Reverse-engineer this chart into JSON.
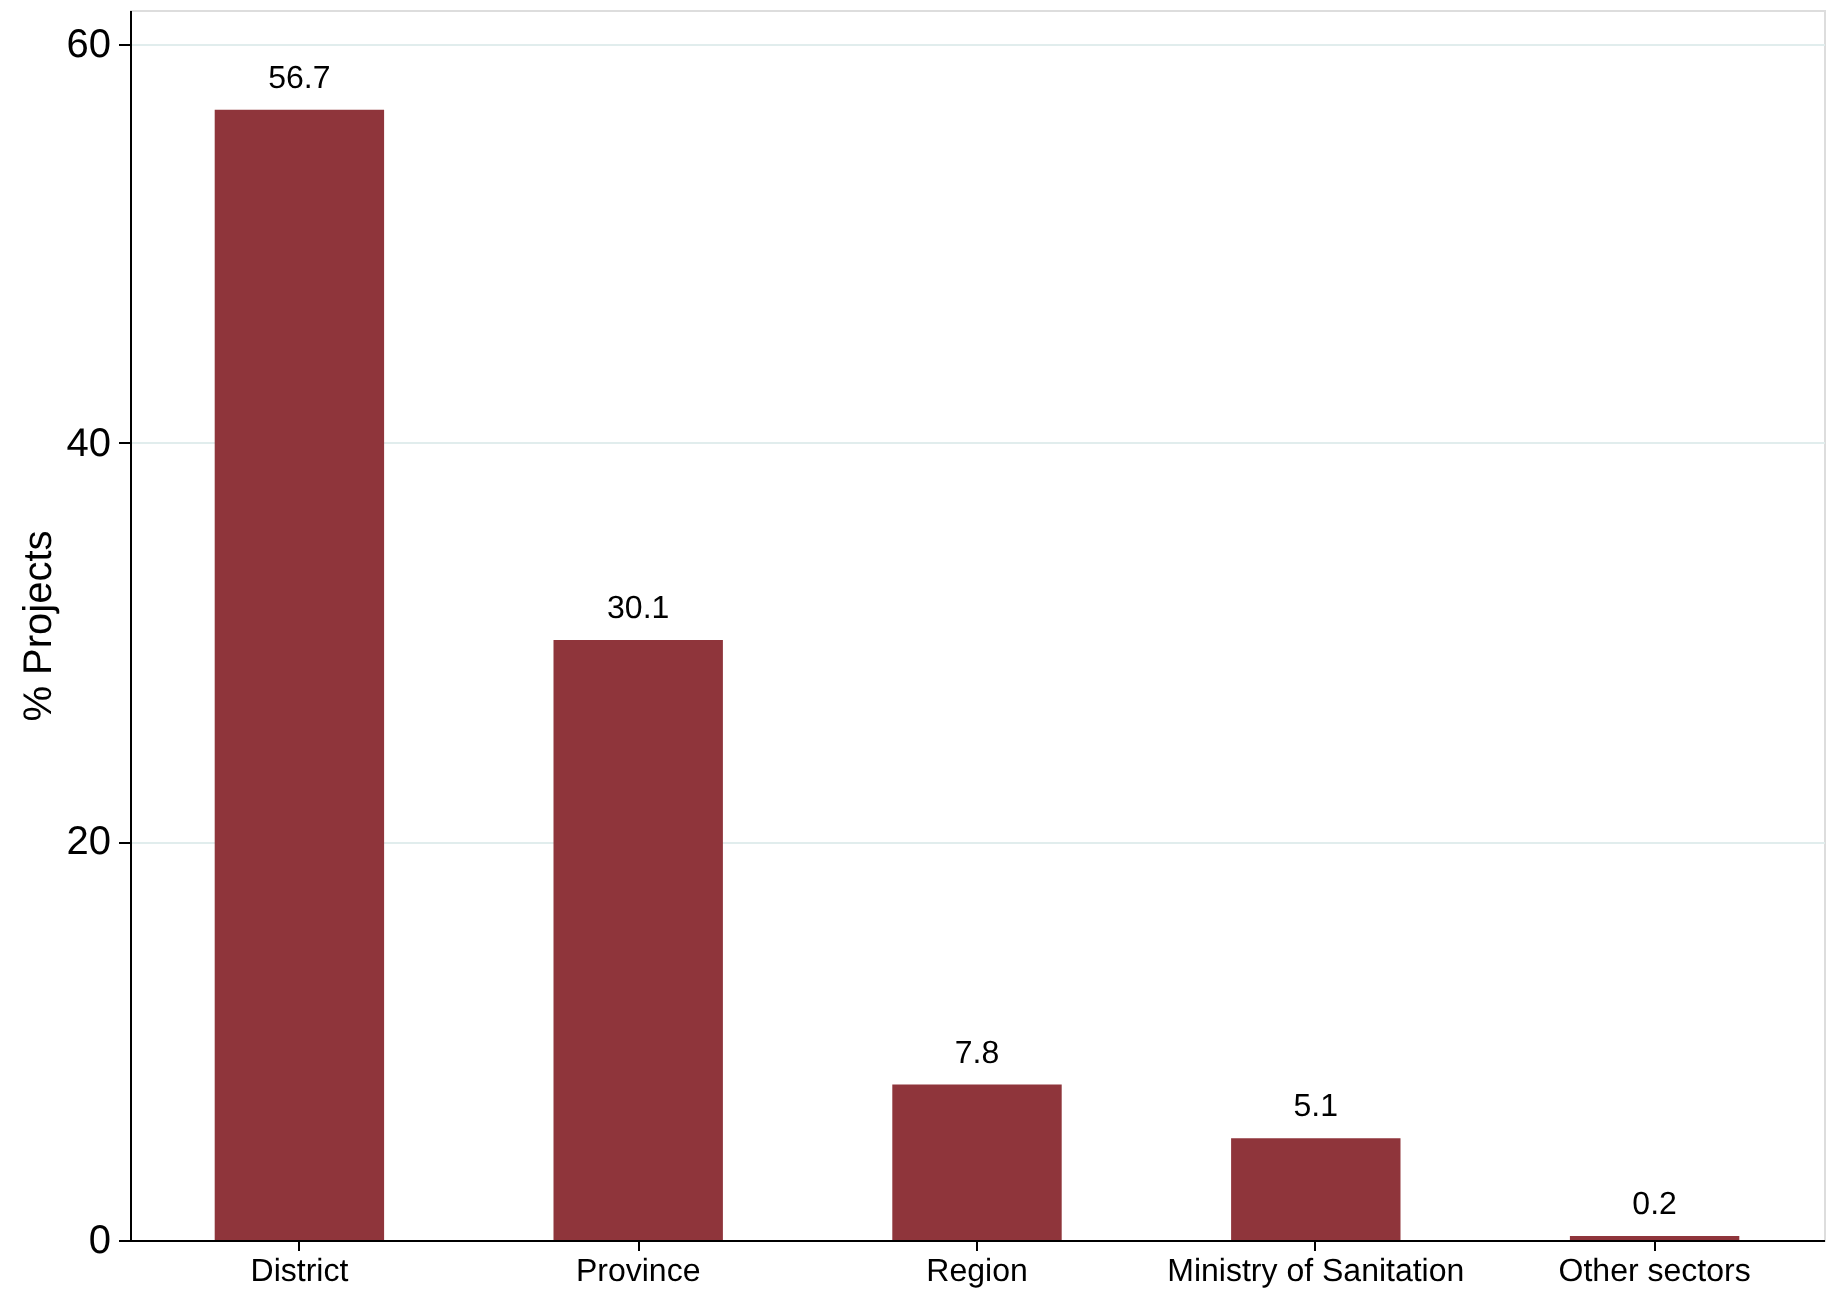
{
  "chart_data": {
    "type": "bar",
    "ylabel": "% Projects",
    "categories": [
      "District",
      "Province",
      "Region",
      "Ministry of Sanitation",
      "Other sectors"
    ],
    "values": [
      56.7,
      30.1,
      7.8,
      5.1,
      0.2
    ],
    "color": "#8f353b",
    "ylim": [
      0,
      61.7
    ],
    "yticks": [
      0,
      20,
      40,
      60
    ],
    "grid": "y",
    "data_labels": true
  }
}
